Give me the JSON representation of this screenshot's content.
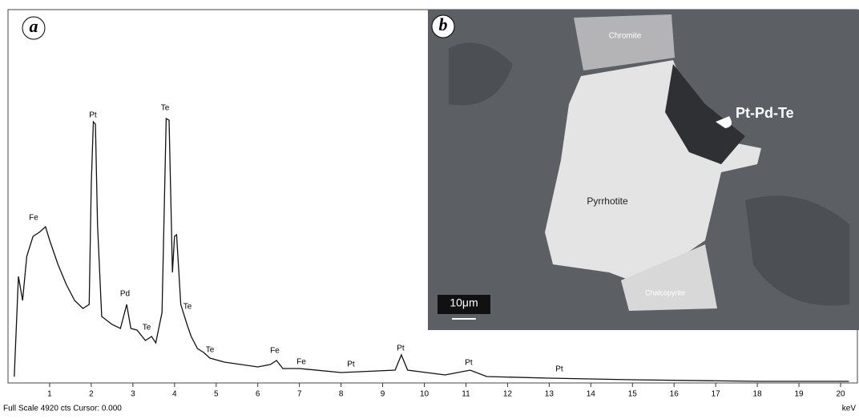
{
  "chart_data": {
    "type": "line",
    "x_label": "keV",
    "footer": "Full Scale 4920 cts Cursor: 0.000",
    "panel_a": "a",
    "panel_b": "b",
    "x": [
      0.15,
      0.25,
      0.35,
      0.45,
      0.6,
      0.75,
      0.9,
      1.0,
      1.2,
      1.4,
      1.6,
      1.8,
      1.95,
      2.0,
      2.05,
      2.1,
      2.15,
      2.25,
      2.5,
      2.7,
      2.85,
      2.95,
      3.1,
      3.3,
      3.45,
      3.55,
      3.7,
      3.8,
      3.87,
      3.95,
      4.0,
      4.05,
      4.15,
      4.3,
      4.4,
      4.55,
      4.7,
      4.85,
      5.2,
      6.0,
      6.3,
      6.45,
      6.6,
      7.0,
      8.0,
      9.3,
      9.45,
      9.6,
      10.5,
      11.1,
      11.5,
      13,
      15,
      18,
      20.2
    ],
    "y": [
      74,
      1397,
      1079,
      1661,
      1926,
      1979,
      2053,
      1873,
      1555,
      1291,
      1079,
      973,
      1026,
      2613,
      3439,
      3407,
      2084,
      868,
      762,
      709,
      1026,
      709,
      688,
      550,
      603,
      518,
      920,
      3481,
      3460,
      1449,
      1926,
      1947,
      1026,
      762,
      603,
      444,
      391,
      317,
      265,
      201,
      233,
      286,
      180,
      180,
      127,
      159,
      360,
      159,
      95,
      159,
      74,
      53,
      32,
      11,
      11
    ],
    "color": "#111111",
    "xlim": [
      0,
      20.2
    ],
    "ylim": [
      0,
      4920
    ],
    "xticks": [
      1,
      2,
      3,
      4,
      5,
      6,
      7,
      8,
      9,
      10,
      11,
      12,
      13,
      14,
      15,
      16,
      17,
      18,
      19,
      20
    ],
    "peak_labels": [
      "Fe",
      "Pt",
      "Pd",
      "Te",
      "Te",
      "Te",
      "Te",
      "Fe",
      "Fe",
      "Pt",
      "Pt",
      "Pt",
      "Pt"
    ],
    "image_labels": {
      "chromite": "Chromite",
      "pyrrhotite": "Pyrrhotite",
      "chalcopyrite": "Chalcopyrite",
      "phase": "Pt-Pd-Te",
      "scale": "10μm"
    }
  }
}
